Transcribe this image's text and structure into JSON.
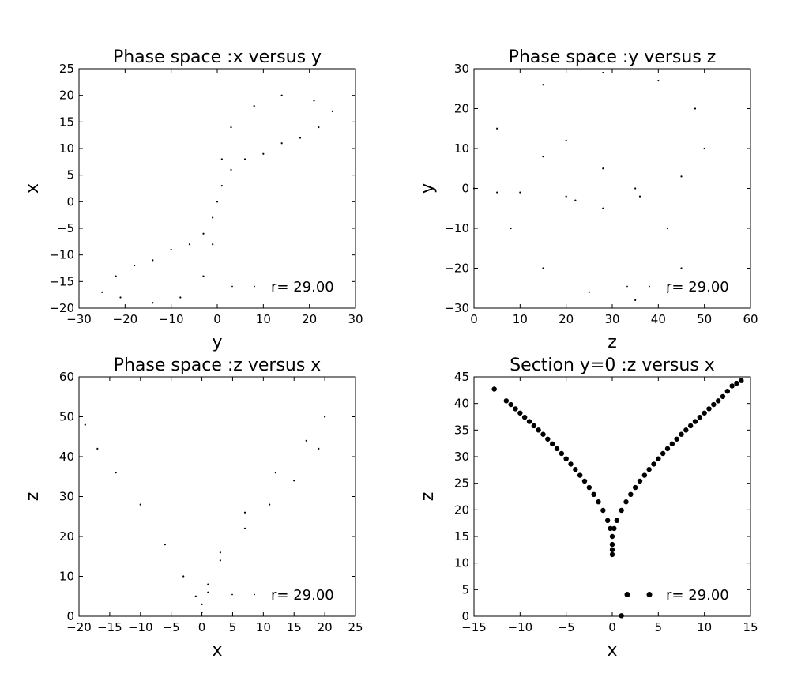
{
  "chart_data": [
    {
      "type": "scatter",
      "title": "Phase space :x versus y",
      "xlabel": "y",
      "ylabel": "x",
      "xlim": [
        -30,
        30
      ],
      "ylim": [
        -20,
        25
      ],
      "xticks": [
        -30,
        -20,
        -10,
        0,
        10,
        20,
        30
      ],
      "yticks": [
        -20,
        -15,
        -10,
        -5,
        0,
        5,
        10,
        15,
        20,
        25
      ],
      "xtick_labels": [
        "−30",
        "−20",
        "−10",
        "0",
        "10",
        "20",
        "30"
      ],
      "ytick_labels": [
        "−20",
        "−15",
        "−10",
        "−5",
        "0",
        "5",
        "10",
        "15",
        "20",
        "25"
      ],
      "legend": {
        "label": "r= 29.00",
        "position": "lower right",
        "marker": "small-dot"
      },
      "color": "#000000",
      "series": [
        {
          "name": "r= 29.00",
          "x": [
            -25,
            -22,
            -18,
            -14,
            -10,
            -6,
            -3,
            -1,
            0,
            1,
            3,
            6,
            10,
            14,
            18,
            22,
            25,
            21,
            14,
            8,
            3,
            1,
            -1,
            -3,
            -8,
            -14,
            -21
          ],
          "y": [
            -17,
            -14,
            -12,
            -11,
            -9,
            -8,
            -6,
            -3,
            0,
            3,
            6,
            8,
            9,
            11,
            12,
            14,
            17,
            19,
            20,
            18,
            14,
            8,
            -8,
            -14,
            -18,
            -19,
            -18
          ]
        }
      ]
    },
    {
      "type": "scatter",
      "title": "Phase space :y versus z",
      "xlabel": "z",
      "ylabel": "y",
      "xlim": [
        0,
        60
      ],
      "ylim": [
        -30,
        30
      ],
      "xticks": [
        0,
        10,
        20,
        30,
        40,
        50,
        60
      ],
      "yticks": [
        -30,
        -20,
        -10,
        0,
        10,
        20,
        30
      ],
      "xtick_labels": [
        "0",
        "10",
        "20",
        "30",
        "40",
        "50",
        "60"
      ],
      "ytick_labels": [
        "−30",
        "−20",
        "−10",
        "0",
        "10",
        "20",
        "30"
      ],
      "legend": {
        "label": "r= 29.00",
        "position": "lower right",
        "marker": "small-dot"
      },
      "color": "#000000",
      "series": [
        {
          "name": "r= 29.00",
          "x": [
            0,
            5,
            15,
            28,
            40,
            48,
            50,
            45,
            35,
            28,
            20,
            15,
            20,
            28,
            36,
            42,
            45,
            42,
            35,
            25,
            15,
            8,
            5,
            10,
            22
          ],
          "y": [
            0,
            15,
            26,
            29,
            27,
            20,
            10,
            3,
            0,
            5,
            12,
            8,
            -2,
            -5,
            -2,
            -10,
            -20,
            -26,
            -28,
            -26,
            -20,
            -10,
            -1,
            -1,
            -3
          ]
        }
      ]
    },
    {
      "type": "scatter",
      "title": "Phase space :z versus x",
      "xlabel": "x",
      "ylabel": "z",
      "xlim": [
        -20,
        25
      ],
      "ylim": [
        0,
        60
      ],
      "xticks": [
        -20,
        -15,
        -10,
        -5,
        0,
        5,
        10,
        15,
        20,
        25
      ],
      "yticks": [
        0,
        10,
        20,
        30,
        40,
        50,
        60
      ],
      "xtick_labels": [
        "−20",
        "−15",
        "−10",
        "−5",
        "0",
        "5",
        "10",
        "15",
        "20",
        "25"
      ],
      "ytick_labels": [
        "0",
        "10",
        "20",
        "30",
        "40",
        "50",
        "60"
      ],
      "legend": {
        "label": "r= 29.00",
        "position": "lower right",
        "marker": "small-dot"
      },
      "color": "#000000",
      "series": [
        {
          "name": "r= 29.00",
          "x": [
            -19,
            -17,
            -14,
            -10,
            -6,
            -3,
            -1,
            0,
            1,
            3,
            7,
            11,
            15,
            19,
            20,
            17,
            12,
            7,
            3,
            1,
            0
          ],
          "y": [
            48,
            42,
            36,
            28,
            18,
            10,
            5,
            3,
            6,
            14,
            22,
            28,
            34,
            42,
            50,
            44,
            36,
            26,
            16,
            8,
            1
          ]
        }
      ]
    },
    {
      "type": "scatter",
      "title": "Section y=0 :z versus x",
      "xlabel": "x",
      "ylabel": "z",
      "xlim": [
        -15,
        15
      ],
      "ylim": [
        0,
        45
      ],
      "xticks": [
        -15,
        -10,
        -5,
        0,
        5,
        10,
        15
      ],
      "yticks": [
        0,
        5,
        10,
        15,
        20,
        25,
        30,
        35,
        40,
        45
      ],
      "xtick_labels": [
        "−15",
        "−10",
        "−5",
        "0",
        "5",
        "10",
        "15"
      ],
      "ytick_labels": [
        "0",
        "5",
        "10",
        "15",
        "20",
        "25",
        "30",
        "35",
        "40",
        "45"
      ],
      "legend": {
        "label": "r= 29.00",
        "position": "lower right",
        "marker": "large-dot"
      },
      "color": "#000000",
      "series": [
        {
          "name": "r= 29.00",
          "x": [
            -12.8,
            -11.5,
            -11,
            -10.5,
            -10,
            -9.5,
            -9,
            -8.5,
            -8,
            -7.5,
            -7,
            -6.5,
            -6,
            -5.5,
            -5,
            -4.5,
            -4,
            -3.5,
            -3,
            -2.5,
            -2,
            -1.5,
            -1,
            -0.5,
            -0.2,
            0,
            0,
            0,
            0,
            0.2,
            0.5,
            1,
            1.5,
            2,
            2.5,
            3,
            3.5,
            4,
            4.5,
            5,
            5.5,
            6,
            6.5,
            7,
            7.5,
            8,
            8.5,
            9,
            9.5,
            10,
            10.5,
            11,
            11.5,
            12,
            12.5,
            13,
            13.5,
            14,
            1.0
          ],
          "y": [
            42.7,
            40.5,
            39.8,
            39.0,
            38.2,
            37.4,
            36.6,
            35.8,
            35.0,
            34.2,
            33.3,
            32.4,
            31.5,
            30.6,
            29.6,
            28.6,
            27.6,
            26.5,
            25.4,
            24.2,
            22.9,
            21.5,
            19.9,
            18.0,
            16.5,
            15,
            13.5,
            12.5,
            11.6,
            16.5,
            18.0,
            19.9,
            21.5,
            22.9,
            24.2,
            25.4,
            26.5,
            27.6,
            28.6,
            29.6,
            30.6,
            31.5,
            32.4,
            33.3,
            34.2,
            35.0,
            35.8,
            36.6,
            37.4,
            38.2,
            39.0,
            39.8,
            40.5,
            41.3,
            42.3,
            43.3,
            43.8,
            44.3,
            0.1
          ]
        }
      ]
    }
  ]
}
